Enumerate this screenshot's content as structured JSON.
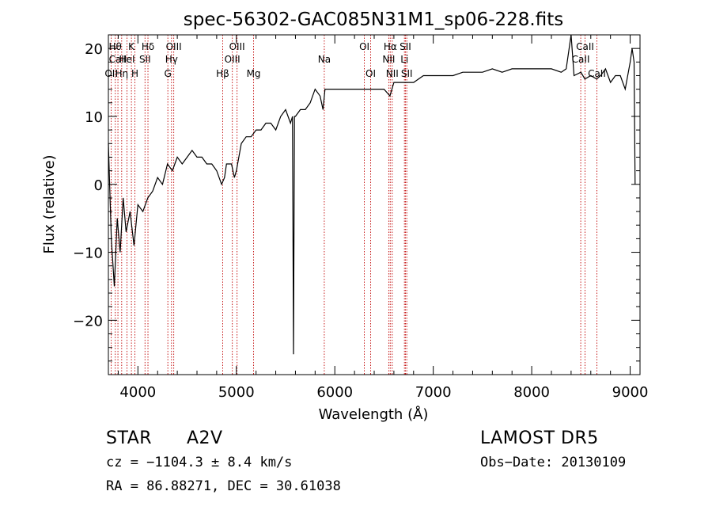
{
  "chart_data": {
    "type": "line",
    "title": "spec-56302-GAC085N31M1_sp06-228.fits",
    "xlabel": "Wavelength (Å)",
    "ylabel": "Flux (relative)",
    "xlim": [
      3700,
      9100
    ],
    "ylim": [
      -28,
      22
    ],
    "x_ticks": [
      4000,
      5000,
      6000,
      7000,
      8000,
      9000
    ],
    "y_ticks": [
      20,
      10,
      0,
      -10,
      -20
    ],
    "x_tick_labels": [
      "4000",
      "5000",
      "6000",
      "7000",
      "8000",
      "9000"
    ],
    "y_tick_labels": [
      "20",
      "10",
      "0",
      "−10",
      "−20"
    ],
    "series": [
      {
        "points": [
          [
            3700,
            6
          ],
          [
            3730,
            -8
          ],
          [
            3760,
            -15
          ],
          [
            3790,
            -5
          ],
          [
            3820,
            -10
          ],
          [
            3850,
            -2
          ],
          [
            3880,
            -7
          ],
          [
            3920,
            -4
          ],
          [
            3960,
            -9
          ],
          [
            4000,
            -3
          ],
          [
            4050,
            -4
          ],
          [
            4100,
            -2
          ],
          [
            4150,
            -1
          ],
          [
            4200,
            1
          ],
          [
            4250,
            0
          ],
          [
            4300,
            3
          ],
          [
            4350,
            2
          ],
          [
            4400,
            4
          ],
          [
            4450,
            3
          ],
          [
            4500,
            4
          ],
          [
            4550,
            5
          ],
          [
            4600,
            4
          ],
          [
            4650,
            4
          ],
          [
            4700,
            3
          ],
          [
            4750,
            3
          ],
          [
            4800,
            2
          ],
          [
            4850,
            0
          ],
          [
            4880,
            1
          ],
          [
            4900,
            3
          ],
          [
            4950,
            3
          ],
          [
            4980,
            1
          ],
          [
            5000,
            2
          ],
          [
            5050,
            6
          ],
          [
            5100,
            7
          ],
          [
            5150,
            7
          ],
          [
            5200,
            8
          ],
          [
            5250,
            8
          ],
          [
            5300,
            9
          ],
          [
            5350,
            9
          ],
          [
            5400,
            8
          ],
          [
            5450,
            10
          ],
          [
            5500,
            11
          ],
          [
            5550,
            9
          ],
          [
            5570,
            10
          ],
          [
            5580,
            -25
          ],
          [
            5590,
            10
          ],
          [
            5600,
            10
          ],
          [
            5650,
            11
          ],
          [
            5700,
            11
          ],
          [
            5750,
            12
          ],
          [
            5800,
            14
          ],
          [
            5850,
            13
          ],
          [
            5880,
            11
          ],
          [
            5900,
            14
          ],
          [
            5950,
            14
          ],
          [
            6000,
            14
          ],
          [
            6050,
            14
          ],
          [
            6100,
            14
          ],
          [
            6150,
            14
          ],
          [
            6200,
            14
          ],
          [
            6300,
            14
          ],
          [
            6400,
            14
          ],
          [
            6500,
            14
          ],
          [
            6560,
            13
          ],
          [
            6600,
            15
          ],
          [
            6700,
            15
          ],
          [
            6800,
            15
          ],
          [
            6900,
            16
          ],
          [
            7000,
            16
          ],
          [
            7100,
            16
          ],
          [
            7200,
            16
          ],
          [
            7300,
            16.5
          ],
          [
            7400,
            16.5
          ],
          [
            7500,
            16.5
          ],
          [
            7600,
            17
          ],
          [
            7700,
            16.5
          ],
          [
            7800,
            17
          ],
          [
            7900,
            17
          ],
          [
            8000,
            17
          ],
          [
            8100,
            17
          ],
          [
            8200,
            17
          ],
          [
            8300,
            16.5
          ],
          [
            8350,
            17
          ],
          [
            8400,
            22
          ],
          [
            8430,
            16
          ],
          [
            8500,
            16.5
          ],
          [
            8540,
            15.5
          ],
          [
            8600,
            16
          ],
          [
            8660,
            15.5
          ],
          [
            8700,
            16
          ],
          [
            8750,
            17
          ],
          [
            8800,
            15
          ],
          [
            8850,
            16
          ],
          [
            8900,
            16
          ],
          [
            8950,
            14
          ],
          [
            9000,
            18
          ],
          [
            9020,
            20
          ],
          [
            9040,
            18
          ],
          [
            9050,
            0
          ]
        ]
      }
    ],
    "line_markers": [
      {
        "x": 3729,
        "labels": [
          "OII"
        ],
        "row": 3
      },
      {
        "x": 3770,
        "labels": [
          "Hθ"
        ],
        "row": 1
      },
      {
        "x": 3797,
        "labels": [
          "CaII"
        ],
        "row": 2
      },
      {
        "x": 3835,
        "labels": [
          "Hη"
        ],
        "row": 3
      },
      {
        "x": 3889,
        "labels": [
          "HeI"
        ],
        "row": 2
      },
      {
        "x": 3934,
        "labels": [
          "K"
        ],
        "row": 1
      },
      {
        "x": 3969,
        "labels": [
          "H"
        ],
        "row": 3
      },
      {
        "x": 4072,
        "labels": [
          "SII"
        ],
        "row": 2
      },
      {
        "x": 4102,
        "labels": [
          "Hδ"
        ],
        "row": 1
      },
      {
        "x": 4304,
        "labels": [
          "G"
        ],
        "row": 3
      },
      {
        "x": 4341,
        "labels": [
          "Hγ"
        ],
        "row": 2
      },
      {
        "x": 4364,
        "labels": [
          "OIII"
        ],
        "row": 1
      },
      {
        "x": 4861,
        "labels": [
          "Hβ"
        ],
        "row": 3
      },
      {
        "x": 4959,
        "labels": [
          "OIII"
        ],
        "row": 2
      },
      {
        "x": 5007,
        "labels": [
          "OIII"
        ],
        "row": 1
      },
      {
        "x": 5175,
        "labels": [
          "Mg"
        ],
        "row": 3
      },
      {
        "x": 5893,
        "labels": [
          "Na"
        ],
        "row": 2
      },
      {
        "x": 6300,
        "labels": [
          "OI"
        ],
        "row": 1
      },
      {
        "x": 6364,
        "labels": [
          "OI"
        ],
        "row": 3
      },
      {
        "x": 6548,
        "labels": [
          "NII"
        ],
        "row": 2
      },
      {
        "x": 6563,
        "labels": [
          "Hα"
        ],
        "row": 1
      },
      {
        "x": 6583,
        "labels": [
          "NII"
        ],
        "row": 3
      },
      {
        "x": 6707,
        "labels": [
          "Li"
        ],
        "row": 2
      },
      {
        "x": 6717,
        "labels": [
          "SII"
        ],
        "row": 1
      },
      {
        "x": 6731,
        "labels": [
          "SII"
        ],
        "row": 3
      },
      {
        "x": 8498,
        "labels": [
          "CaII"
        ],
        "row": 2
      },
      {
        "x": 8542,
        "labels": [
          "CaII"
        ],
        "row": 1
      },
      {
        "x": 8662,
        "labels": [
          "CaII"
        ],
        "row": 3
      }
    ]
  },
  "info": {
    "object_class": "STAR",
    "subclass": "A2V",
    "survey": "LAMOST  DR5",
    "redshift": "cz = −1104.3 ± 8.4 km/s",
    "obs_date": "Obs−Date: 20130109",
    "coords": "RA =  86.88271, DEC =  30.61038"
  },
  "colors": {
    "spectrum": "#000000",
    "marker_line": "#c00000",
    "axis": "#000000",
    "background": "#ffffff"
  }
}
